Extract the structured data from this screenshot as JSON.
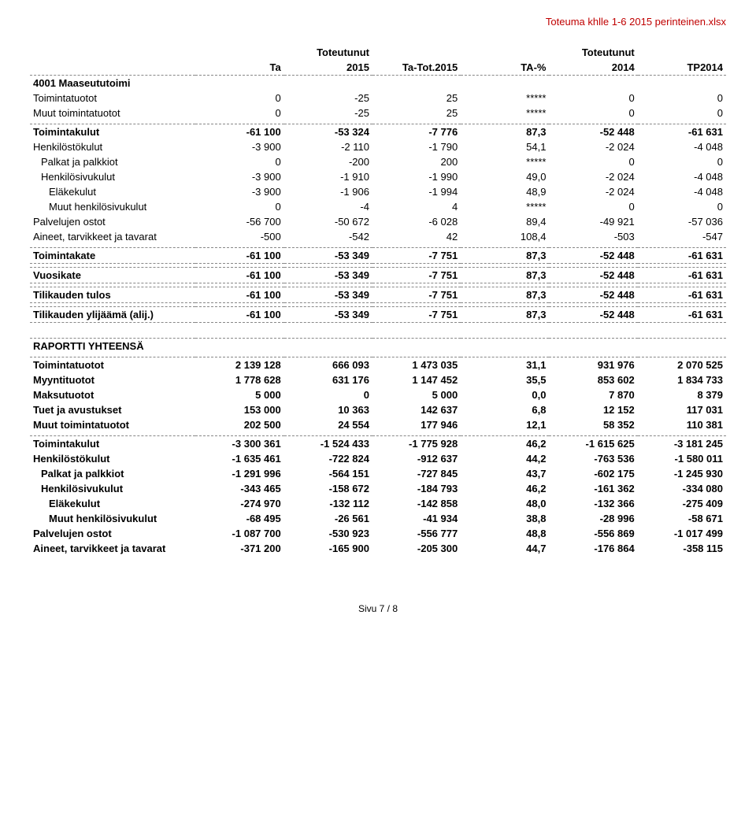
{
  "filename": "Toteuma khlle 1-6 2015 perinteinen.xlsx",
  "footer": "Sivu 7 / 8",
  "headers": {
    "h_top1": "Toteutunut",
    "h_top2": "Toteutunut",
    "ta": "Ta",
    "y2015": "2015",
    "tatot": "Ta-Tot.2015",
    "tapct": "TA-%",
    "y2014": "2014",
    "tp2014": "TP2014"
  },
  "rows": [
    {
      "type": "section",
      "bold": true,
      "label": "4001 Maaseututoimi"
    },
    {
      "type": "data",
      "bold": false,
      "indent": 0,
      "label": "Toimintatuotot",
      "c": [
        "0",
        "-25",
        "25",
        "*****",
        "0",
        "0"
      ]
    },
    {
      "type": "data",
      "bold": false,
      "indent": 0,
      "label": "Muut toimintatuotot",
      "c": [
        "0",
        "-25",
        "25",
        "*****",
        "0",
        "0"
      ]
    },
    {
      "type": "spacer-s"
    },
    {
      "type": "data",
      "bold": true,
      "indent": 0,
      "label": "Toimintakulut",
      "c": [
        "-61 100",
        "-53 324",
        "-7 776",
        "87,3",
        "-52 448",
        "-61 631"
      ],
      "dashTop": true
    },
    {
      "type": "data",
      "bold": false,
      "indent": 0,
      "label": "Henkilöstökulut",
      "c": [
        "-3 900",
        "-2 110",
        "-1 790",
        "54,1",
        "-2 024",
        "-4 048"
      ]
    },
    {
      "type": "data",
      "bold": false,
      "indent": 1,
      "label": "Palkat ja palkkiot",
      "c": [
        "0",
        "-200",
        "200",
        "*****",
        "0",
        "0"
      ]
    },
    {
      "type": "data",
      "bold": false,
      "indent": 1,
      "label": "Henkilösivukulut",
      "c": [
        "-3 900",
        "-1 910",
        "-1 990",
        "49,0",
        "-2 024",
        "-4 048"
      ]
    },
    {
      "type": "data",
      "bold": false,
      "indent": 2,
      "label": "Eläkekulut",
      "c": [
        "-3 900",
        "-1 906",
        "-1 994",
        "48,9",
        "-2 024",
        "-4 048"
      ]
    },
    {
      "type": "data",
      "bold": false,
      "indent": 2,
      "label": "Muut henkilösivukulut",
      "c": [
        "0",
        "-4",
        "4",
        "*****",
        "0",
        "0"
      ]
    },
    {
      "type": "data",
      "bold": false,
      "indent": 0,
      "label": "Palvelujen ostot",
      "c": [
        "-56 700",
        "-50 672",
        "-6 028",
        "89,4",
        "-49 921",
        "-57 036"
      ]
    },
    {
      "type": "data",
      "bold": false,
      "indent": 0,
      "label": "Aineet, tarvikkeet ja tavarat",
      "c": [
        "-500",
        "-542",
        "42",
        "108,4",
        "-503",
        "-547"
      ]
    },
    {
      "type": "spacer-s"
    },
    {
      "type": "data",
      "bold": true,
      "indent": 0,
      "label": "Toimintakate",
      "c": [
        "-61 100",
        "-53 349",
        "-7 751",
        "87,3",
        "-52 448",
        "-61 631"
      ],
      "dashTop": true,
      "dashBottom": true
    },
    {
      "type": "spacer-s"
    },
    {
      "type": "data",
      "bold": true,
      "indent": 0,
      "label": "Vuosikate",
      "c": [
        "-61 100",
        "-53 349",
        "-7 751",
        "87,3",
        "-52 448",
        "-61 631"
      ],
      "dashTop": true,
      "dashBottom": true
    },
    {
      "type": "spacer-s"
    },
    {
      "type": "data",
      "bold": true,
      "indent": 0,
      "label": "Tilikauden tulos",
      "c": [
        "-61 100",
        "-53 349",
        "-7 751",
        "87,3",
        "-52 448",
        "-61 631"
      ],
      "dashTop": true,
      "dashBottom": true
    },
    {
      "type": "spacer-s"
    },
    {
      "type": "data",
      "bold": true,
      "indent": 0,
      "label": "Tilikauden ylijäämä (alij.)",
      "c": [
        "-61 100",
        "-53 349",
        "-7 751",
        "87,3",
        "-52 448",
        "-61 631"
      ],
      "dashTop": true,
      "dashBottom": true
    },
    {
      "type": "spacer"
    },
    {
      "type": "spacer"
    },
    {
      "type": "section",
      "bold": true,
      "label": "RAPORTTI YHTEENSÄ",
      "dashTop": true
    },
    {
      "type": "spacer-s"
    },
    {
      "type": "data",
      "bold": true,
      "indent": 0,
      "label": "Toimintatuotot",
      "c": [
        "2 139 128",
        "666 093",
        "1 473 035",
        "31,1",
        "931 976",
        "2 070 525"
      ],
      "dashTop": true
    },
    {
      "type": "data",
      "bold": true,
      "indent": 0,
      "label": "Myyntituotot",
      "c": [
        "1 778 628",
        "631 176",
        "1 147 452",
        "35,5",
        "853 602",
        "1 834 733"
      ]
    },
    {
      "type": "data",
      "bold": true,
      "indent": 0,
      "label": "Maksutuotot",
      "c": [
        "5 000",
        "0",
        "5 000",
        "0,0",
        "7 870",
        "8 379"
      ]
    },
    {
      "type": "data",
      "bold": true,
      "indent": 0,
      "label": "Tuet ja avustukset",
      "c": [
        "153 000",
        "10 363",
        "142 637",
        "6,8",
        "12 152",
        "117 031"
      ]
    },
    {
      "type": "data",
      "bold": true,
      "indent": 0,
      "label": "Muut toimintatuotot",
      "c": [
        "202 500",
        "24 554",
        "177 946",
        "12,1",
        "58 352",
        "110 381"
      ]
    },
    {
      "type": "spacer-s"
    },
    {
      "type": "data",
      "bold": true,
      "indent": 0,
      "label": "Toimintakulut",
      "c": [
        "-3 300 361",
        "-1 524 433",
        "-1 775 928",
        "46,2",
        "-1 615 625",
        "-3 181 245"
      ],
      "dashTop": true
    },
    {
      "type": "data",
      "bold": true,
      "indent": 0,
      "label": "Henkilöstökulut",
      "c": [
        "-1 635 461",
        "-722 824",
        "-912 637",
        "44,2",
        "-763 536",
        "-1 580 011"
      ]
    },
    {
      "type": "data",
      "bold": true,
      "indent": 1,
      "label": "Palkat ja palkkiot",
      "c": [
        "-1 291 996",
        "-564 151",
        "-727 845",
        "43,7",
        "-602 175",
        "-1 245 930"
      ]
    },
    {
      "type": "data",
      "bold": true,
      "indent": 1,
      "label": "Henkilösivukulut",
      "c": [
        "-343 465",
        "-158 672",
        "-184 793",
        "46,2",
        "-161 362",
        "-334 080"
      ]
    },
    {
      "type": "data",
      "bold": true,
      "indent": 2,
      "label": "Eläkekulut",
      "c": [
        "-274 970",
        "-132 112",
        "-142 858",
        "48,0",
        "-132 366",
        "-275 409"
      ]
    },
    {
      "type": "data",
      "bold": true,
      "indent": 2,
      "label": "Muut henkilösivukulut",
      "c": [
        "-68 495",
        "-26 561",
        "-41 934",
        "38,8",
        "-28 996",
        "-58 671"
      ]
    },
    {
      "type": "data",
      "bold": true,
      "indent": 0,
      "label": "Palvelujen ostot",
      "c": [
        "-1 087 700",
        "-530 923",
        "-556 777",
        "48,8",
        "-556 869",
        "-1 017 499"
      ]
    },
    {
      "type": "data",
      "bold": true,
      "indent": 0,
      "label": "Aineet, tarvikkeet ja tavarat",
      "c": [
        "-371 200",
        "-165 900",
        "-205 300",
        "44,7",
        "-176 864",
        "-358 115"
      ]
    }
  ]
}
